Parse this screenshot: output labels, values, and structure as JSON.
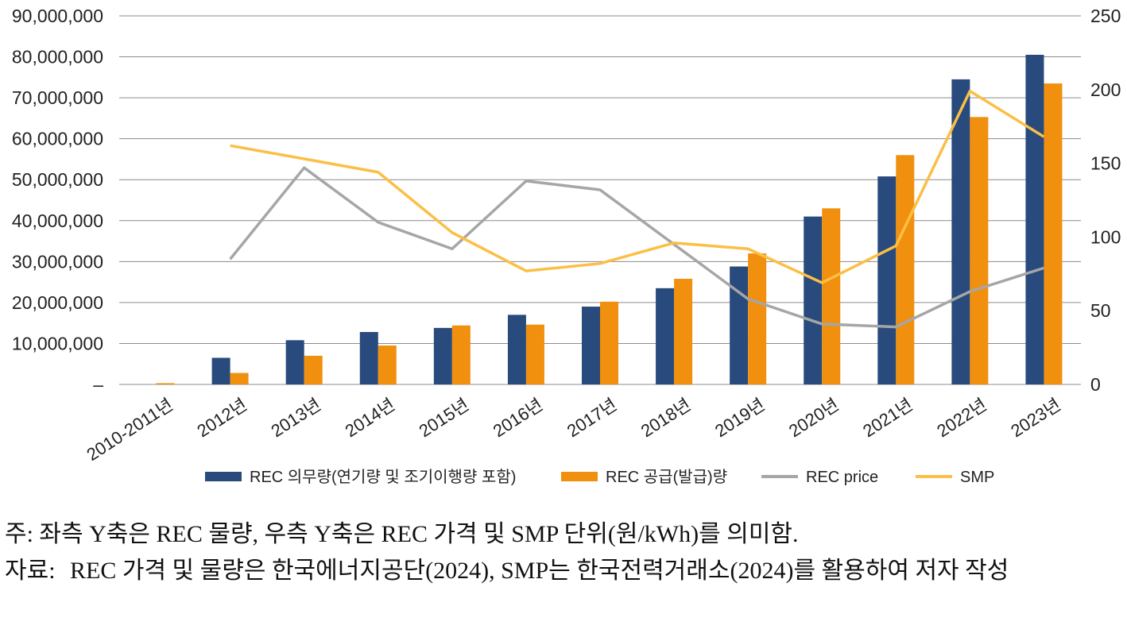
{
  "chart_data": {
    "type": "bar",
    "categories": [
      "2010-2011년",
      "2012년",
      "2013년",
      "2014년",
      "2015년",
      "2016년",
      "2017년",
      "2018년",
      "2019년",
      "2020년",
      "2021년",
      "2022년",
      "2023년"
    ],
    "series": [
      {
        "name": "REC 의무량(연기량 및 조기이행량 포함)",
        "kind": "bar",
        "axis": "left",
        "color": "#294a7c",
        "values": [
          0,
          6500000,
          10800000,
          12800000,
          13800000,
          17000000,
          19000000,
          23500000,
          28800000,
          41000000,
          50800000,
          74500000,
          80500000
        ]
      },
      {
        "name": "REC 공급(발급)량",
        "kind": "bar",
        "axis": "left",
        "color": "#f0900e",
        "values": [
          300000,
          2800000,
          7000000,
          9500000,
          14400000,
          14600000,
          20200000,
          25800000,
          32000000,
          43000000,
          56000000,
          65300000,
          73500000
        ]
      },
      {
        "name": "REC price",
        "kind": "line",
        "axis": "right",
        "color": "#a6a6a6",
        "values": [
          null,
          85,
          147,
          110,
          92,
          138,
          132,
          95,
          58,
          41,
          39,
          63,
          79
        ]
      },
      {
        "name": "SMP",
        "kind": "line",
        "axis": "right",
        "color": "#fbbf45",
        "values": [
          null,
          162,
          153,
          144,
          103,
          77,
          82,
          96,
          92,
          69,
          94,
          199,
          168
        ]
      }
    ],
    "y_left": {
      "min": 0,
      "max": 90000000,
      "ticks": [
        "–",
        "10,000,000",
        "20,000,000",
        "30,000,000",
        "40,000,000",
        "50,000,000",
        "60,000,000",
        "70,000,000",
        "80,000,000",
        "90,000,000"
      ]
    },
    "y_right": {
      "min": 0,
      "max": 250,
      "ticks": [
        "0",
        "50",
        "100",
        "150",
        "200",
        "250"
      ]
    },
    "grid": true,
    "legend_position": "bottom"
  },
  "notes": {
    "note_text": "주: 좌측 Y축은 REC 물량, 우측 Y축은 REC 가격 및 SMP 단위(원/kWh)를 의미함.",
    "source_label": "자료:",
    "source_text": "REC 가격 및 물량은 한국에너지공단(2024), SMP는 한국전력거래소(2024)를 활용하여 저자 작성"
  }
}
